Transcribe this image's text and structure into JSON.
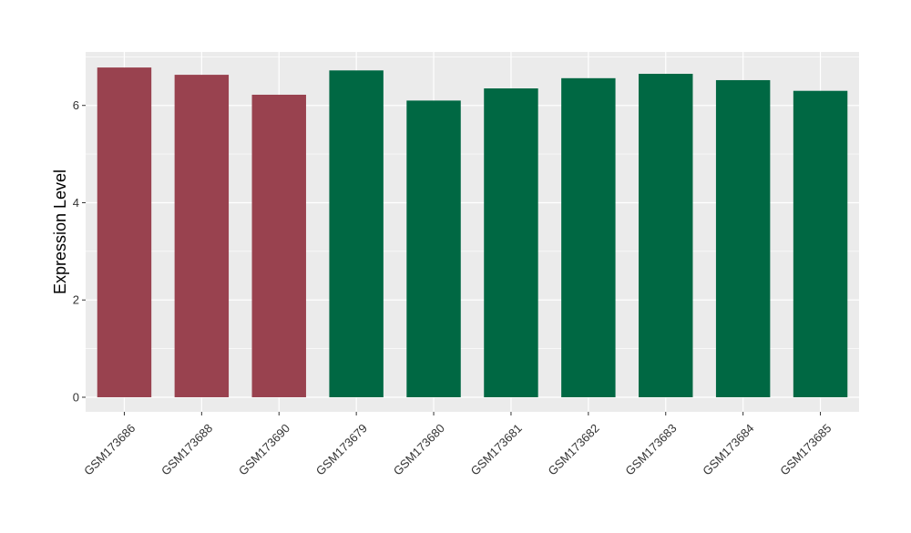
{
  "chart_data": {
    "type": "bar",
    "title": "",
    "xlabel": "",
    "ylabel": "Expression Level",
    "categories": [
      "GSM173686",
      "GSM173688",
      "GSM173690",
      "GSM173679",
      "GSM173680",
      "GSM173681",
      "GSM173682",
      "GSM173683",
      "GSM173684",
      "GSM173685"
    ],
    "values": [
      6.78,
      6.63,
      6.22,
      6.72,
      6.1,
      6.35,
      6.56,
      6.65,
      6.52,
      6.3
    ],
    "bar_colors": [
      "#99424f",
      "#99424f",
      "#99424f",
      "#006843",
      "#006843",
      "#006843",
      "#006843",
      "#006843",
      "#006843",
      "#006843"
    ],
    "ylim": [
      -0.3,
      7.1
    ],
    "yticks": [
      0,
      2,
      4,
      6
    ],
    "ytick_labels": [
      "0",
      "2",
      "4",
      "6"
    ],
    "grid": true,
    "legend": "none",
    "panel_background": "#ebebeb",
    "grid_color": "#ffffff"
  }
}
